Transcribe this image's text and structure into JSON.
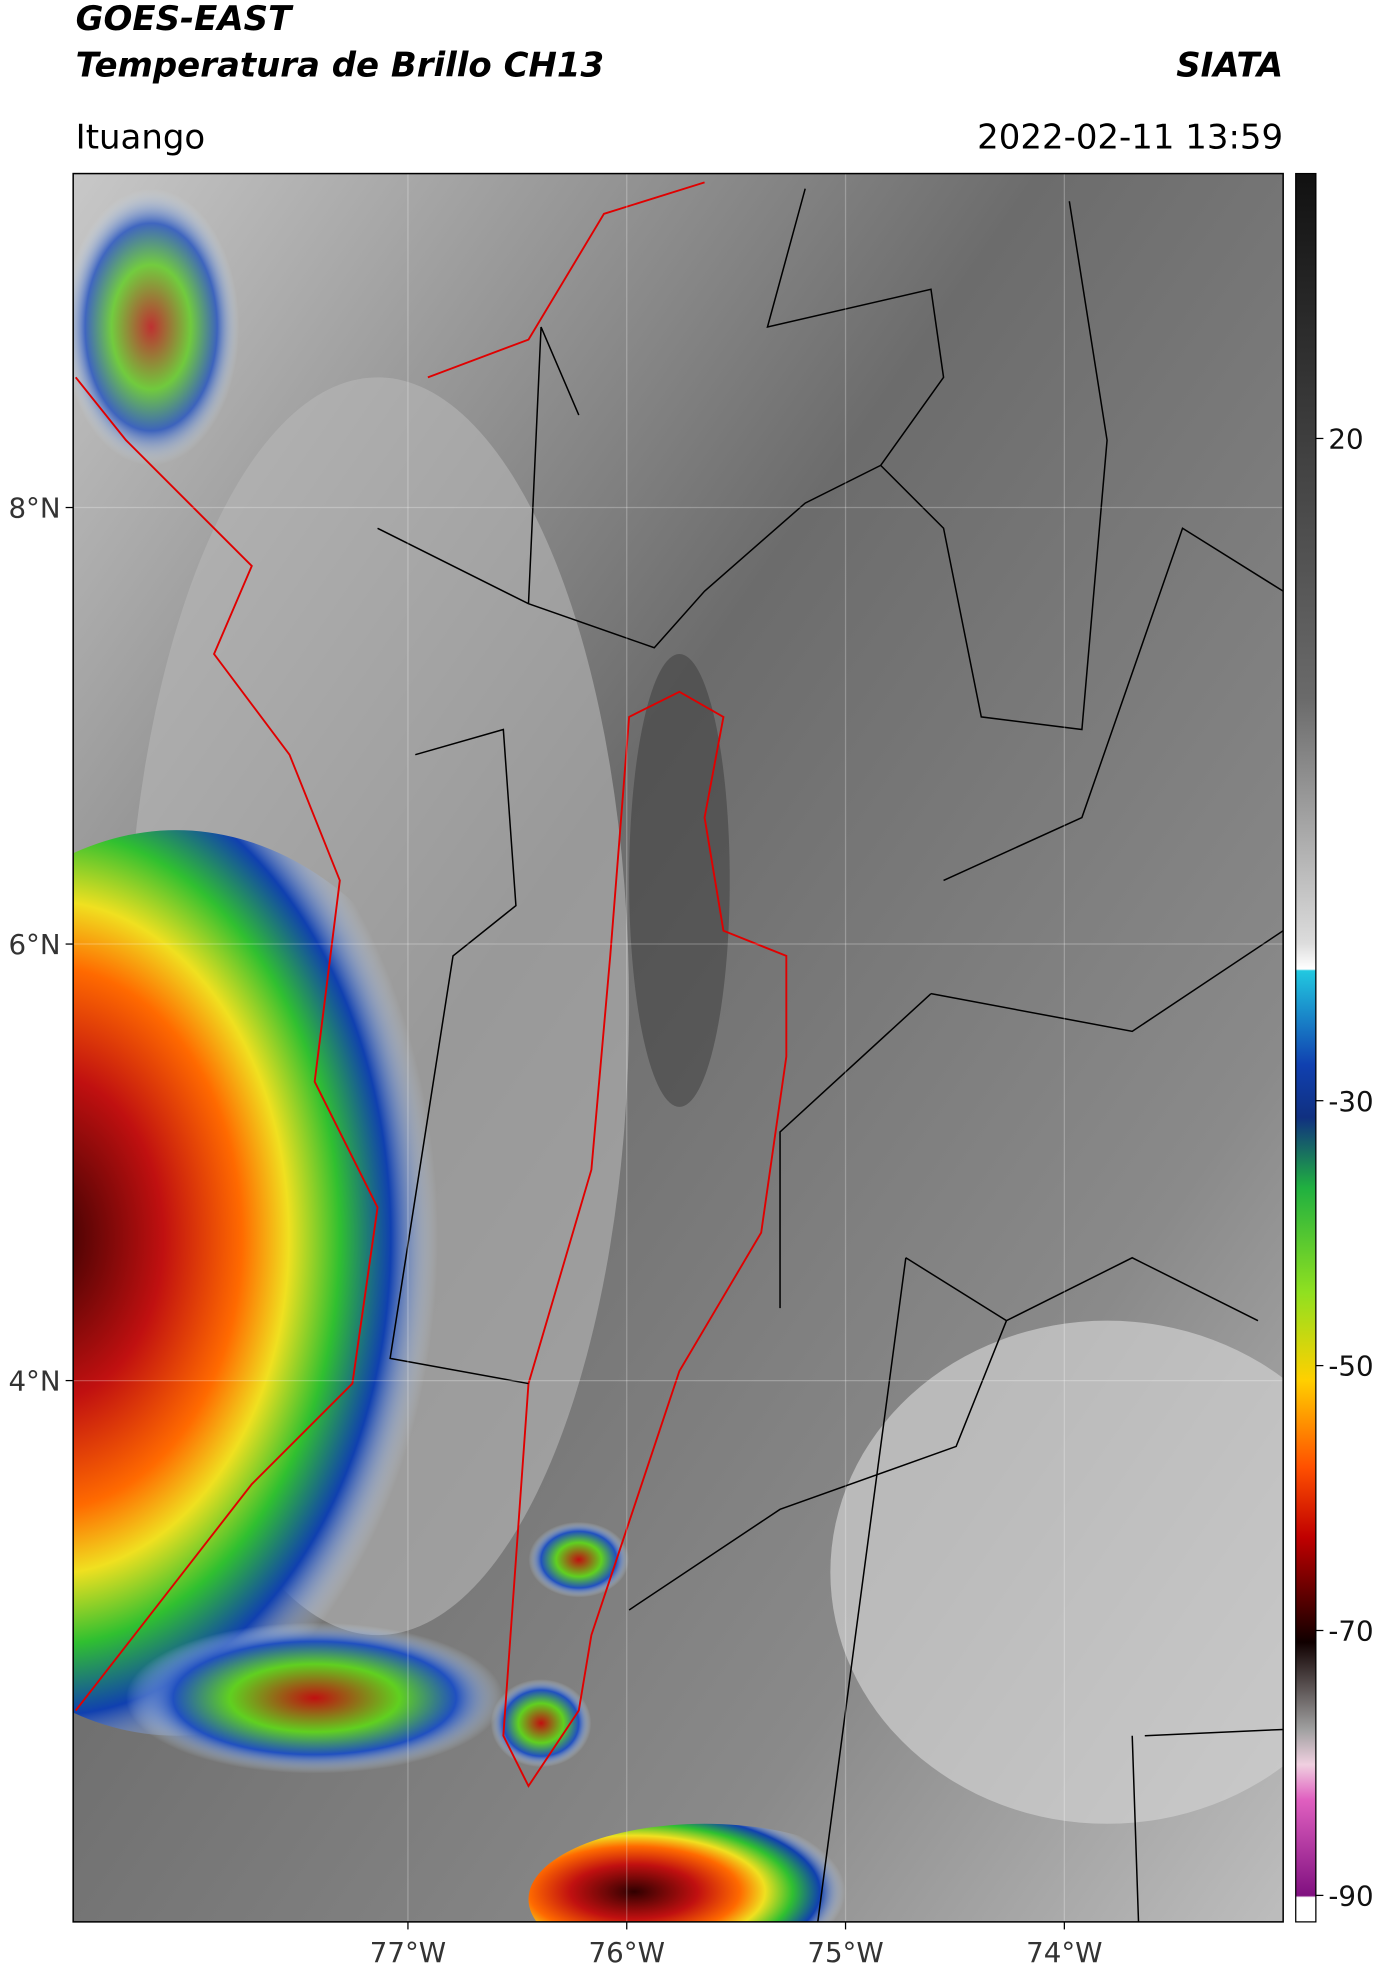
{
  "header": {
    "title": "GOES-EAST",
    "subtitle": "Temperatura de Brillo CH13",
    "source": "SIATA",
    "location": "Ituango",
    "timestamp": "2022-02-11 13:59"
  },
  "map": {
    "xlim": [
      -78.53,
      -73.0
    ],
    "ylim": [
      1.52,
      9.53
    ],
    "xticks": [
      {
        "value": -77,
        "label": "77°W"
      },
      {
        "value": -76,
        "label": "76°W"
      },
      {
        "value": -75,
        "label": "75°W"
      },
      {
        "value": -74,
        "label": "74°W"
      }
    ],
    "yticks": [
      {
        "value": 8,
        "label": "8°N"
      },
      {
        "value": 6,
        "label": "6°N"
      },
      {
        "value": 4,
        "label": "4°N"
      }
    ]
  },
  "colorbar": {
    "lim": [
      -92,
      40
    ],
    "ticks": [
      20,
      -30,
      -50,
      -70,
      -90
    ]
  }
}
